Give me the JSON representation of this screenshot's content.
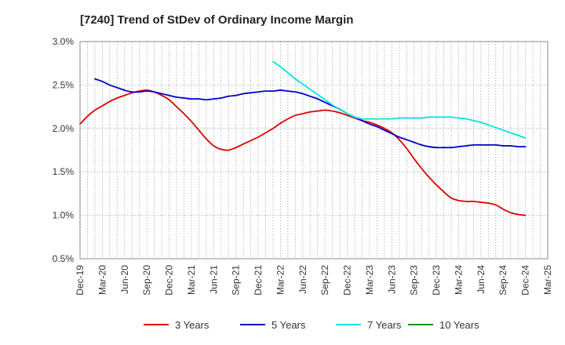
{
  "chart_data": {
    "type": "line",
    "title": "[7240]  Trend of StDev of Ordinary Income Margin",
    "xlabel": "",
    "ylabel": "",
    "x_start": "Dec-19",
    "x_end": "Mar-25",
    "x_tick_labels": [
      "Dec-19",
      "Mar-20",
      "Jun-20",
      "Sep-20",
      "Dec-20",
      "Mar-21",
      "Jun-21",
      "Sep-21",
      "Dec-21",
      "Mar-22",
      "Jun-22",
      "Sep-22",
      "Dec-22",
      "Mar-23",
      "Jun-23",
      "Sep-23",
      "Dec-23",
      "Mar-24",
      "Jun-24",
      "Sep-24",
      "Dec-24",
      "Mar-25"
    ],
    "y_tick_labels": [
      "3.0%",
      "2.5%",
      "2.0%",
      "1.5%",
      "1.0%",
      "0.5%"
    ],
    "ylim": [
      0.5,
      3.0
    ],
    "y_unit": "%",
    "grid": true,
    "legend_position": "bottom",
    "series": [
      {
        "name": "3 Years",
        "color": "#e00000",
        "points": [
          [
            "Dec-19",
            2.05
          ],
          [
            "Jan-20",
            2.14
          ],
          [
            "Feb-20",
            2.21
          ],
          [
            "Mar-20",
            2.26
          ],
          [
            "Apr-20",
            2.31
          ],
          [
            "May-20",
            2.35
          ],
          [
            "Jun-20",
            2.38
          ],
          [
            "Jul-20",
            2.41
          ],
          [
            "Aug-20",
            2.43
          ],
          [
            "Sep-20",
            2.44
          ],
          [
            "Oct-20",
            2.42
          ],
          [
            "Nov-20",
            2.38
          ],
          [
            "Dec-20",
            2.33
          ],
          [
            "Jan-21",
            2.25
          ],
          [
            "Feb-21",
            2.17
          ],
          [
            "Mar-21",
            2.08
          ],
          [
            "Apr-21",
            1.98
          ],
          [
            "May-21",
            1.88
          ],
          [
            "Jun-21",
            1.8
          ],
          [
            "Jul-21",
            1.76
          ],
          [
            "Aug-21",
            1.75
          ],
          [
            "Sep-21",
            1.78
          ],
          [
            "Oct-21",
            1.82
          ],
          [
            "Nov-21",
            1.86
          ],
          [
            "Dec-21",
            1.9
          ],
          [
            "Jan-22",
            1.95
          ],
          [
            "Feb-22",
            2.0
          ],
          [
            "Mar-22",
            2.06
          ],
          [
            "Apr-22",
            2.11
          ],
          [
            "May-22",
            2.15
          ],
          [
            "Jun-22",
            2.17
          ],
          [
            "Jul-22",
            2.19
          ],
          [
            "Aug-22",
            2.2
          ],
          [
            "Sep-22",
            2.21
          ],
          [
            "Oct-22",
            2.2
          ],
          [
            "Nov-22",
            2.18
          ],
          [
            "Dec-22",
            2.15
          ],
          [
            "Jan-23",
            2.12
          ],
          [
            "Feb-23",
            2.09
          ],
          [
            "Mar-23",
            2.07
          ],
          [
            "Apr-23",
            2.04
          ],
          [
            "May-23",
            2.0
          ],
          [
            "Jun-23",
            1.95
          ],
          [
            "Jul-23",
            1.87
          ],
          [
            "Aug-23",
            1.77
          ],
          [
            "Sep-23",
            1.65
          ],
          [
            "Oct-23",
            1.54
          ],
          [
            "Nov-23",
            1.44
          ],
          [
            "Dec-23",
            1.35
          ],
          [
            "Jan-24",
            1.27
          ],
          [
            "Feb-24",
            1.2
          ],
          [
            "Mar-24",
            1.17
          ],
          [
            "Apr-24",
            1.16
          ],
          [
            "May-24",
            1.16
          ],
          [
            "Jun-24",
            1.15
          ],
          [
            "Jul-24",
            1.14
          ],
          [
            "Aug-24",
            1.12
          ],
          [
            "Sep-24",
            1.07
          ],
          [
            "Oct-24",
            1.03
          ],
          [
            "Nov-24",
            1.01
          ],
          [
            "Dec-24",
            1.0
          ]
        ]
      },
      {
        "name": "5 Years",
        "color": "#0000cc",
        "points": [
          [
            "Feb-20",
            2.57
          ],
          [
            "Mar-20",
            2.54
          ],
          [
            "Apr-20",
            2.5
          ],
          [
            "May-20",
            2.47
          ],
          [
            "Jun-20",
            2.44
          ],
          [
            "Jul-20",
            2.42
          ],
          [
            "Aug-20",
            2.42
          ],
          [
            "Sep-20",
            2.43
          ],
          [
            "Oct-20",
            2.42
          ],
          [
            "Nov-20",
            2.4
          ],
          [
            "Dec-20",
            2.38
          ],
          [
            "Jan-21",
            2.36
          ],
          [
            "Feb-21",
            2.35
          ],
          [
            "Mar-21",
            2.34
          ],
          [
            "Apr-21",
            2.34
          ],
          [
            "May-21",
            2.33
          ],
          [
            "Jun-21",
            2.34
          ],
          [
            "Jul-21",
            2.35
          ],
          [
            "Aug-21",
            2.37
          ],
          [
            "Sep-21",
            2.38
          ],
          [
            "Oct-21",
            2.4
          ],
          [
            "Nov-21",
            2.41
          ],
          [
            "Dec-21",
            2.42
          ],
          [
            "Jan-22",
            2.43
          ],
          [
            "Feb-22",
            2.43
          ],
          [
            "Mar-22",
            2.44
          ],
          [
            "Apr-22",
            2.43
          ],
          [
            "May-22",
            2.42
          ],
          [
            "Jun-22",
            2.4
          ],
          [
            "Jul-22",
            2.37
          ],
          [
            "Aug-22",
            2.34
          ],
          [
            "Sep-22",
            2.3
          ],
          [
            "Oct-22",
            2.26
          ],
          [
            "Nov-22",
            2.22
          ],
          [
            "Dec-22",
            2.17
          ],
          [
            "Jan-23",
            2.13
          ],
          [
            "Feb-23",
            2.09
          ],
          [
            "Mar-23",
            2.05
          ],
          [
            "Apr-23",
            2.02
          ],
          [
            "May-23",
            1.98
          ],
          [
            "Jun-23",
            1.94
          ],
          [
            "Jul-23",
            1.9
          ],
          [
            "Aug-23",
            1.87
          ],
          [
            "Sep-23",
            1.84
          ],
          [
            "Oct-23",
            1.81
          ],
          [
            "Nov-23",
            1.79
          ],
          [
            "Dec-23",
            1.78
          ],
          [
            "Jan-24",
            1.78
          ],
          [
            "Feb-24",
            1.78
          ],
          [
            "Mar-24",
            1.79
          ],
          [
            "Apr-24",
            1.8
          ],
          [
            "May-24",
            1.81
          ],
          [
            "Jun-24",
            1.81
          ],
          [
            "Jul-24",
            1.81
          ],
          [
            "Aug-24",
            1.81
          ],
          [
            "Sep-24",
            1.8
          ],
          [
            "Oct-24",
            1.8
          ],
          [
            "Nov-24",
            1.79
          ],
          [
            "Dec-24",
            1.79
          ]
        ]
      },
      {
        "name": "7 Years",
        "color": "#00e5e5",
        "points": [
          [
            "Feb-22",
            2.77
          ],
          [
            "Mar-22",
            2.71
          ],
          [
            "Apr-22",
            2.64
          ],
          [
            "May-22",
            2.57
          ],
          [
            "Jun-22",
            2.51
          ],
          [
            "Jul-22",
            2.45
          ],
          [
            "Aug-22",
            2.39
          ],
          [
            "Sep-22",
            2.33
          ],
          [
            "Oct-22",
            2.27
          ],
          [
            "Nov-22",
            2.22
          ],
          [
            "Dec-22",
            2.17
          ],
          [
            "Jan-23",
            2.13
          ],
          [
            "Feb-23",
            2.11
          ],
          [
            "Mar-23",
            2.11
          ],
          [
            "Apr-23",
            2.11
          ],
          [
            "May-23",
            2.11
          ],
          [
            "Jun-23",
            2.11
          ],
          [
            "Jul-23",
            2.12
          ],
          [
            "Aug-23",
            2.12
          ],
          [
            "Sep-23",
            2.12
          ],
          [
            "Oct-23",
            2.12
          ],
          [
            "Nov-23",
            2.13
          ],
          [
            "Dec-23",
            2.13
          ],
          [
            "Jan-24",
            2.13
          ],
          [
            "Feb-24",
            2.13
          ],
          [
            "Mar-24",
            2.12
          ],
          [
            "Apr-24",
            2.11
          ],
          [
            "May-24",
            2.09
          ],
          [
            "Jun-24",
            2.07
          ],
          [
            "Jul-24",
            2.04
          ],
          [
            "Aug-24",
            2.01
          ],
          [
            "Sep-24",
            1.98
          ],
          [
            "Oct-24",
            1.95
          ],
          [
            "Nov-24",
            1.92
          ],
          [
            "Dec-24",
            1.89
          ]
        ]
      },
      {
        "name": "10 Years",
        "color": "#228b22",
        "points": []
      }
    ]
  }
}
